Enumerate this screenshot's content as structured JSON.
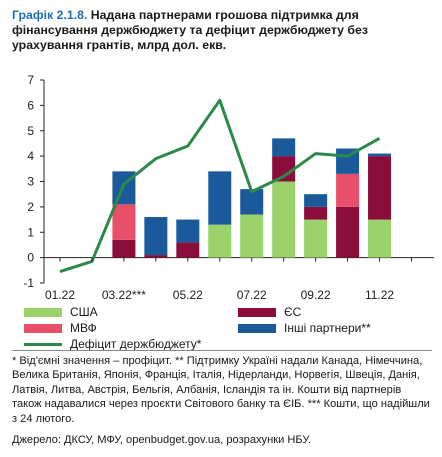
{
  "figure": {
    "label": "Графік 2.1.8.",
    "title": "Надана партнерами грошова підтримка для фінансування держбюджету та дефіцит держбюджету без урахування грантів, млрд дол. екв."
  },
  "chart_data": {
    "type": "bar+line",
    "stacked": true,
    "categories": [
      "01.22",
      "02.22",
      "03.22",
      "04.22",
      "05.22",
      "06.22",
      "07.22",
      "08.22",
      "09.22",
      "10.22",
      "11.22",
      "12.22"
    ],
    "x_tick_labels": [
      "01.22",
      "",
      "03.22***",
      "",
      "05.22",
      "",
      "07.22",
      "",
      "09.22",
      "",
      "11.22",
      ""
    ],
    "ylim": [
      -1,
      7
    ],
    "yticks": [
      -1,
      0,
      1,
      2,
      3,
      4,
      5,
      6,
      7
    ],
    "series": [
      {
        "name": "США",
        "kind": "bar",
        "color": "#9bd26a",
        "values": [
          0,
          0,
          0,
          0,
          0,
          1.3,
          1.7,
          3.0,
          1.5,
          0,
          1.5,
          0
        ]
      },
      {
        "name": "ЄС",
        "kind": "bar",
        "color": "#8b0d3a",
        "values": [
          0,
          0,
          0.7,
          0.1,
          0.6,
          0,
          0,
          1.0,
          0.5,
          2.0,
          2.5,
          0
        ]
      },
      {
        "name": "МВФ",
        "kind": "bar",
        "color": "#e8506a",
        "values": [
          0,
          0,
          1.4,
          0,
          0,
          0,
          0,
          0,
          0,
          1.3,
          0,
          0
        ]
      },
      {
        "name": "Інші партнери**",
        "kind": "bar",
        "color": "#1a5a9a",
        "values": [
          0,
          0,
          1.3,
          1.5,
          0.9,
          2.1,
          1.0,
          0.7,
          0.5,
          1.0,
          0.1,
          0
        ]
      },
      {
        "name": "Дефіцит держбюджету*",
        "kind": "line",
        "color": "#2a8a4a",
        "values": [
          -0.55,
          -0.15,
          2.9,
          3.9,
          4.4,
          6.2,
          2.6,
          3.2,
          4.1,
          4.0,
          4.7,
          null
        ]
      }
    ],
    "grid": false
  },
  "legend": {
    "usa": "США",
    "eu": "ЄС",
    "imf": "МВФ",
    "other": "Інші партнери**",
    "deficit": "Дефіцит держбюджету*"
  },
  "notes": {
    "text": "* Від'ємні значення – профіцит. ** Підтримку Україні надали Канада, Німеччина, Велика Британія, Японія, Франція, Італія, Нідерланди, Норвегія, Швеція, Данія, Латвія, Литва, Австрія, Бельгія, Албанія, Ісландія та ін. Кошти від партнерів також надавалися через проєкти Світового банку та ЄІБ. *** Кошти, що надійшли з 24 лютого."
  },
  "source": "Джерело: ДКСУ, МФУ, openbudget.gov.ua, розрахунки НБУ.",
  "colors": {
    "title_label": "#1f6fb2",
    "usa": "#9bd26a",
    "eu": "#8b0d3a",
    "imf": "#e8506a",
    "other": "#1a5a9a",
    "deficit": "#2a8a4a"
  }
}
